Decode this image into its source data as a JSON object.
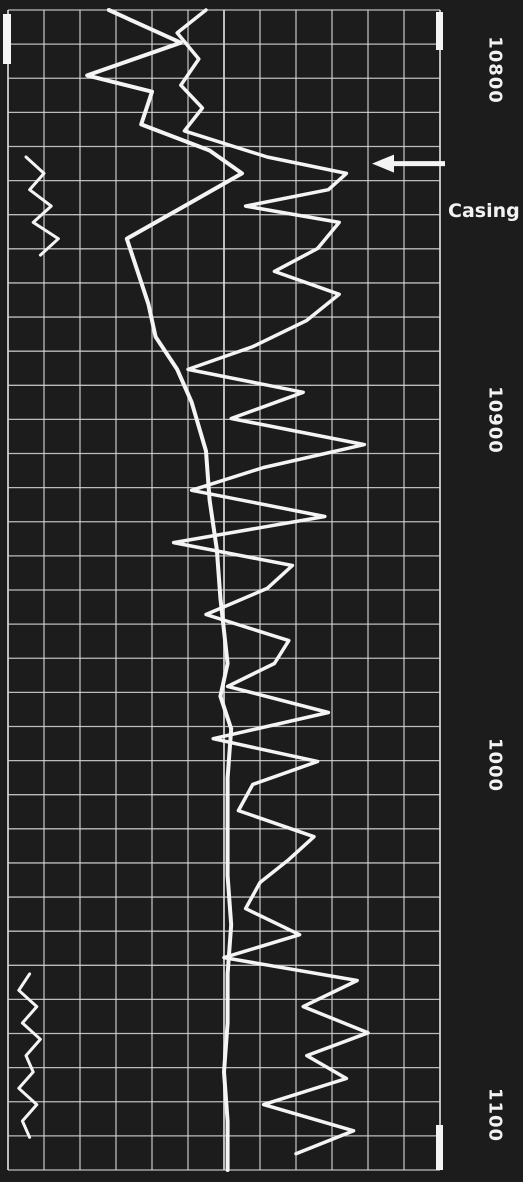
{
  "chart_data": {
    "type": "line",
    "xlabel": "",
    "ylabel": "",
    "depth_ticks": [
      "10800",
      "10900",
      "1000",
      "1100"
    ],
    "annotations": [
      {
        "text": "Casing",
        "depth": 10812
      }
    ],
    "depth_range": [
      10765,
      11120
    ],
    "grid": true,
    "colors": {
      "background": "#1c1c1c",
      "grid": "#d8d8d8",
      "trace": "#f4f4f4"
    },
    "series": [
      {
        "depth": [
          10765,
          10775,
          10785,
          10790,
          10800,
          10808,
          10815,
          10825,
          10835,
          10845,
          10855,
          10865,
          10875,
          10885,
          10900,
          10915,
          10930,
          10945,
          10955,
          10965,
          10975,
          10985,
          11000,
          11015,
          11030,
          11045,
          11060,
          11075,
          11090,
          11105,
          11120
        ],
        "values": [
          2.8,
          4.8,
          2.2,
          4.0,
          3.7,
          5.6,
          6.5,
          4.9,
          3.3,
          3.6,
          3.9,
          4.1,
          4.7,
          5.1,
          5.5,
          5.6,
          5.8,
          5.9,
          6.0,
          6.1,
          5.9,
          6.2,
          6.1,
          6.1,
          6.1,
          6.2,
          6.1,
          6.1,
          6.0,
          6.1,
          6.1
        ]
      },
      {
        "depth": [
          10765,
          10772,
          10780,
          10788,
          10795,
          10802,
          10810,
          10815,
          10820,
          10825,
          10830,
          10838,
          10845,
          10852,
          10860,
          10868,
          10875,
          10882,
          10890,
          10898,
          10905,
          10912,
          10920,
          10928,
          10935,
          10942,
          10950,
          10958,
          10965,
          10972,
          10980,
          10988,
          10995,
          11002,
          11010,
          11018,
          11025,
          11032,
          11040,
          11048,
          11055,
          11062,
          11070,
          11078,
          11085,
          11092,
          11100,
          11108,
          11115
        ],
        "values": [
          5.5,
          4.7,
          5.3,
          4.8,
          5.4,
          4.9,
          7.2,
          9.4,
          8.9,
          6.6,
          9.2,
          8.6,
          7.4,
          9.2,
          8.3,
          6.8,
          5.0,
          8.2,
          6.2,
          9.9,
          7.1,
          5.1,
          8.8,
          4.6,
          7.9,
          7.2,
          5.5,
          7.8,
          7.4,
          6.1,
          8.9,
          5.7,
          8.6,
          6.8,
          6.4,
          8.5,
          7.8,
          7.0,
          6.6,
          8.1,
          6.0,
          9.7,
          8.2,
          10.0,
          8.3,
          9.4,
          7.1,
          9.6,
          8.0
        ]
      },
      {
        "depth": [
          10810,
          10815,
          10820,
          10825,
          10830,
          10835,
          10840
        ],
        "values": [
          0.5,
          1.0,
          0.6,
          1.2,
          0.7,
          1.4,
          0.9
        ]
      },
      {
        "depth": [
          11060,
          11065,
          11070,
          11075,
          11080,
          11085,
          11090,
          11095,
          11100,
          11105,
          11110
        ],
        "values": [
          0.6,
          0.3,
          0.8,
          0.4,
          0.9,
          0.5,
          0.7,
          0.3,
          0.8,
          0.4,
          0.6
        ]
      }
    ]
  }
}
